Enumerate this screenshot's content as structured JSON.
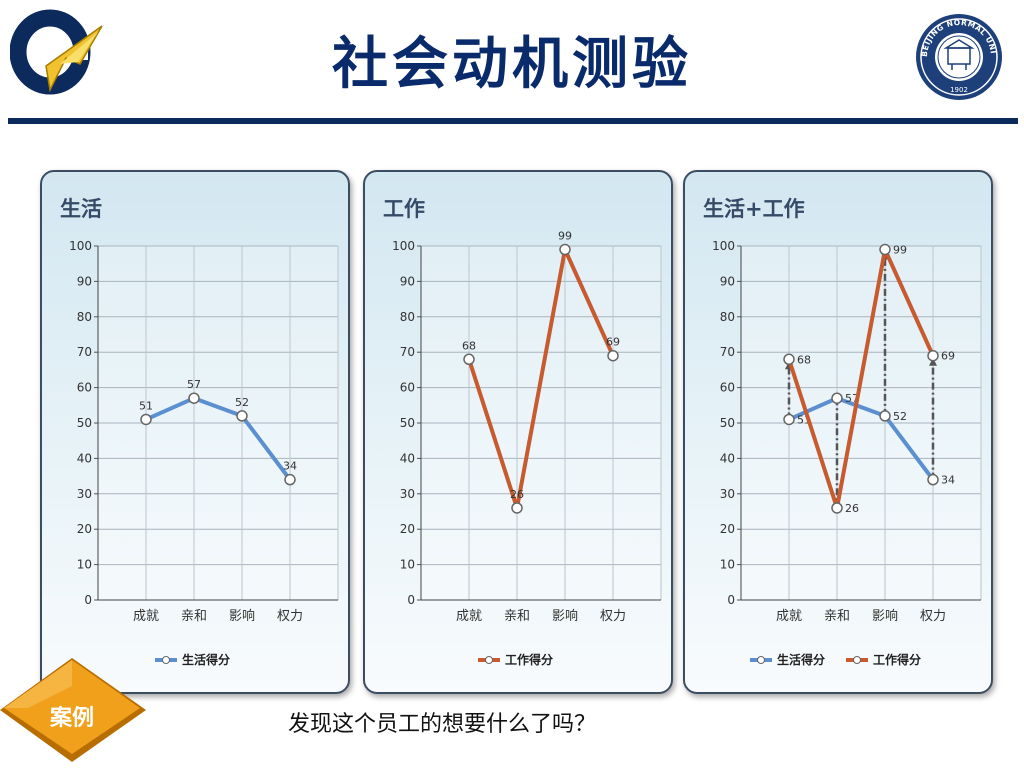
{
  "header": {
    "title": "社会动机测验",
    "logo_left_icon": "stylized-a-logo",
    "logo_right_icon": "beijing-normal-university-seal",
    "seal_text": "BEIJING NORMAL UNIVERSITY",
    "seal_year": "1902"
  },
  "colors": {
    "title": "#0a2b6b",
    "life_series": "#5b8fd0",
    "work_series": "#c75a2e",
    "badge": "#f0a01a"
  },
  "chart_data": [
    {
      "type": "line",
      "title": "生活",
      "categories": [
        "成就",
        "亲和",
        "影响",
        "权力"
      ],
      "series": [
        {
          "name": "生活得分",
          "values": [
            51,
            57,
            52,
            34
          ]
        }
      ],
      "ylim": [
        0,
        100
      ],
      "yticks": [
        "0",
        "10",
        "20",
        "30",
        "40",
        "50",
        "60",
        "70",
        "80",
        "90",
        "100"
      ],
      "grid": true,
      "legend_position": "bottom"
    },
    {
      "type": "line",
      "title": "工作",
      "categories": [
        "成就",
        "亲和",
        "影响",
        "权力"
      ],
      "series": [
        {
          "name": "工作得分",
          "values": [
            68,
            26,
            99,
            69
          ]
        }
      ],
      "ylim": [
        0,
        100
      ],
      "yticks": [
        "0",
        "10",
        "20",
        "30",
        "40",
        "50",
        "60",
        "70",
        "80",
        "90",
        "100"
      ],
      "grid": true,
      "legend_position": "bottom"
    },
    {
      "type": "line",
      "title": "生活+工作",
      "categories": [
        "成就",
        "亲和",
        "影响",
        "权力"
      ],
      "series": [
        {
          "name": "生活得分",
          "values": [
            51,
            57,
            52,
            34
          ]
        },
        {
          "name": "工作得分",
          "values": [
            68,
            26,
            99,
            69
          ]
        }
      ],
      "ylim": [
        0,
        100
      ],
      "yticks": [
        "0",
        "10",
        "20",
        "30",
        "40",
        "50",
        "60",
        "70",
        "80",
        "90",
        "100"
      ],
      "grid": true,
      "legend_position": "bottom",
      "annotations": "dash-dot arrows connecting life score to work score in each category"
    }
  ],
  "footer": {
    "badge": "案例",
    "question": "发现这个员工的想要什么了吗？"
  }
}
